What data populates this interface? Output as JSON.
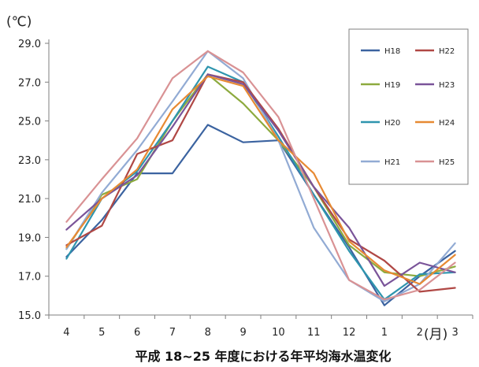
{
  "chart_data": {
    "type": "line",
    "title": "",
    "ylabel": "(℃)",
    "xlabel": "(月)",
    "caption": "平成 18~25 年度における年平均海水温変化",
    "ylim": [
      15.0,
      29.0
    ],
    "yticks": [
      "15.0",
      "17.0",
      "19.0",
      "21.0",
      "23.0",
      "25.0",
      "27.0",
      "29.0"
    ],
    "categories": [
      "4",
      "5",
      "6",
      "7",
      "8",
      "9",
      "10",
      "11",
      "12",
      "1",
      "2",
      "3"
    ],
    "grid": false,
    "legend_position": "top-right",
    "series": [
      {
        "name": "H18",
        "color": "#3b63a0",
        "values": [
          18.0,
          19.9,
          22.3,
          22.3,
          24.8,
          23.9,
          24.0,
          21.2,
          18.5,
          15.5,
          17.0,
          18.3
        ]
      },
      {
        "name": "H19",
        "color": "#8daa3e",
        "values": [
          18.4,
          21.2,
          22.0,
          25.0,
          27.4,
          25.9,
          24.0,
          21.6,
          18.6,
          17.2,
          17.0,
          17.5
        ]
      },
      {
        "name": "H20",
        "color": "#2e95ae",
        "values": [
          17.9,
          21.0,
          22.4,
          25.0,
          27.8,
          27.0,
          24.2,
          21.2,
          18.3,
          15.8,
          17.1,
          17.2
        ]
      },
      {
        "name": "H21",
        "color": "#92abd4",
        "values": [
          18.4,
          21.3,
          23.5,
          26.0,
          28.6,
          27.2,
          24.0,
          19.5,
          16.8,
          15.7,
          16.6,
          18.7
        ]
      },
      {
        "name": "H22",
        "color": "#b04845",
        "values": [
          18.6,
          19.6,
          23.3,
          24.0,
          27.4,
          27.0,
          24.6,
          21.6,
          18.9,
          17.8,
          16.2,
          16.4
        ]
      },
      {
        "name": "H23",
        "color": "#7a5499",
        "values": [
          19.4,
          21.0,
          22.2,
          24.7,
          27.4,
          26.9,
          24.5,
          21.6,
          19.5,
          16.5,
          17.7,
          17.2
        ]
      },
      {
        "name": "H24",
        "color": "#e78a33",
        "values": [
          18.5,
          21.0,
          22.5,
          25.6,
          27.3,
          26.8,
          24.0,
          22.3,
          18.8,
          17.3,
          16.6,
          18.1
        ]
      },
      {
        "name": "H25",
        "color": "#d99294",
        "values": [
          19.8,
          22.0,
          24.1,
          27.2,
          28.6,
          27.5,
          25.2,
          21.0,
          16.8,
          15.8,
          16.3,
          17.7
        ]
      }
    ]
  }
}
